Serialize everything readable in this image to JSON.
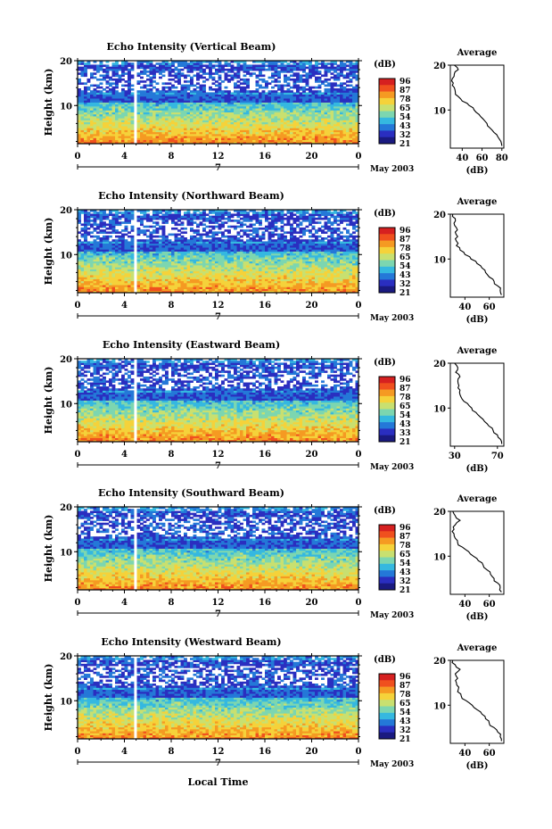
{
  "xlabel": "Local Time",
  "cbar_title": "(dB)",
  "cbar_ticks": [
    "96",
    "87",
    "78",
    "65",
    "54",
    "43",
    "32",
    "21"
  ],
  "cbar_colors": [
    "#d62020",
    "#f0501e",
    "#f59a22",
    "#f5d23a",
    "#c8e070",
    "#7cd6b0",
    "#35b8e0",
    "#2478d8",
    "#2a2ec0",
    "#1a1a80"
  ],
  "date_label": "May 2003",
  "day_marker": "7",
  "xtick_labels": [
    "0",
    "4",
    "8",
    "12",
    "16",
    "20",
    "0"
  ],
  "ytick_labels": [
    "10",
    "20"
  ],
  "ylabel": "Height (km)",
  "avg_title": "Average",
  "avg_xlabel": "(dB)",
  "panels": [
    {
      "title": "Echo Intensity (Vertical Beam)",
      "cbar_ticks": [
        "96",
        "87",
        "78",
        "65",
        "54",
        "43",
        "32",
        "21"
      ],
      "avg_xticks": [
        "40",
        "60",
        "80"
      ],
      "avg_xlim": [
        28,
        82
      ]
    },
    {
      "title": "Echo Intensity (Northward Beam)",
      "cbar_ticks": [
        "96",
        "87",
        "78",
        "65",
        "54",
        "43",
        "32",
        "21"
      ],
      "avg_xticks": [
        "40",
        "60"
      ],
      "avg_xlim": [
        28,
        72
      ]
    },
    {
      "title": "Echo Intensity (Eastward Beam)",
      "cbar_ticks": [
        "96",
        "87",
        "78",
        "65",
        "54",
        "43",
        "33",
        "21"
      ],
      "avg_xticks": [
        "30",
        "70"
      ],
      "avg_xlim": [
        26,
        76
      ]
    },
    {
      "title": "Echo Intensity (Southward Beam)",
      "cbar_ticks": [
        "96",
        "87",
        "78",
        "65",
        "54",
        "43",
        "32",
        "21"
      ],
      "avg_xticks": [
        "40",
        "60"
      ],
      "avg_xlim": [
        28,
        72
      ]
    },
    {
      "title": "Echo Intensity (Westward Beam)",
      "cbar_ticks": [
        "96",
        "87",
        "78",
        "65",
        "54",
        "43",
        "32",
        "21"
      ],
      "avg_xticks": [
        "40",
        "60"
      ],
      "avg_xlim": [
        28,
        72
      ]
    }
  ],
  "chart_data": {
    "type": "heatmap",
    "x_range_hours": [
      0,
      24
    ],
    "y_range_km": [
      1.5,
      20
    ],
    "color_range_db": [
      21,
      96
    ],
    "gap_hours": [
      4.7,
      5.0
    ],
    "average_profile": {
      "height_km": [
        2,
        3,
        4,
        5,
        6,
        7,
        8,
        9,
        10,
        11,
        12,
        13,
        14,
        15,
        16,
        17,
        18,
        19,
        20
      ],
      "vertical_db": [
        80,
        79,
        76,
        72,
        68,
        65,
        61,
        57,
        52,
        47,
        40,
        36,
        33,
        32,
        31,
        30,
        32,
        36,
        32
      ],
      "northward_db": [
        70,
        69,
        67,
        64,
        60,
        57,
        54,
        50,
        45,
        40,
        36,
        33,
        33,
        34,
        32,
        33,
        31,
        32,
        30
      ],
      "eastward_db": [
        74,
        73,
        70,
        66,
        62,
        58,
        54,
        50,
        46,
        42,
        37,
        35,
        35,
        34,
        33,
        35,
        31,
        33,
        30
      ],
      "southward_db": [
        70,
        69,
        67,
        64,
        61,
        58,
        55,
        51,
        47,
        43,
        38,
        34,
        32,
        31,
        31,
        32,
        36,
        32,
        30
      ],
      "westward_db": [
        70,
        69,
        67,
        64,
        60,
        57,
        54,
        50,
        46,
        41,
        37,
        34,
        35,
        33,
        34,
        32,
        36,
        32,
        30
      ]
    }
  }
}
